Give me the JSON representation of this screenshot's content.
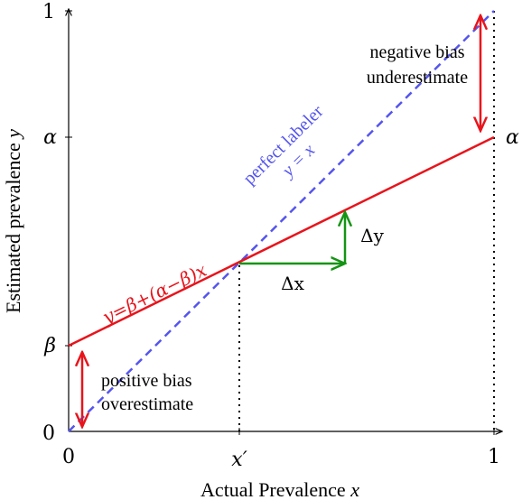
{
  "axes": {
    "x_label_prefix": "Actual Prevalence",
    "x_label_var": "x",
    "y_label_prefix": "Estimated prevalence",
    "y_label_var": "y",
    "x_ticks": {
      "zero": "0",
      "one": "1",
      "xprime": "x′"
    },
    "y_ticks": {
      "zero": "0",
      "one": "1",
      "alpha": "α",
      "beta": "β"
    },
    "right_alpha": "α"
  },
  "lines": {
    "labeler_eq": "y=β+(α−β)x",
    "perfect_line1": "perfect labeler",
    "perfect_line2": "y = x"
  },
  "annotations": {
    "neg_bias_line1": "negative bias",
    "neg_bias_line2": "underestimate",
    "pos_bias_line1": "positive bias",
    "pos_bias_line2": "overestimate",
    "delta_x": "Δx",
    "delta_y": "Δy"
  },
  "colors": {
    "labeler": "#e8141c",
    "perfect": "#5555ee",
    "delta": "#149414",
    "bias_arrow": "#e8141c"
  },
  "model": {
    "alpha": 0.7,
    "beta": 0.21,
    "x_prime": 0.4
  }
}
